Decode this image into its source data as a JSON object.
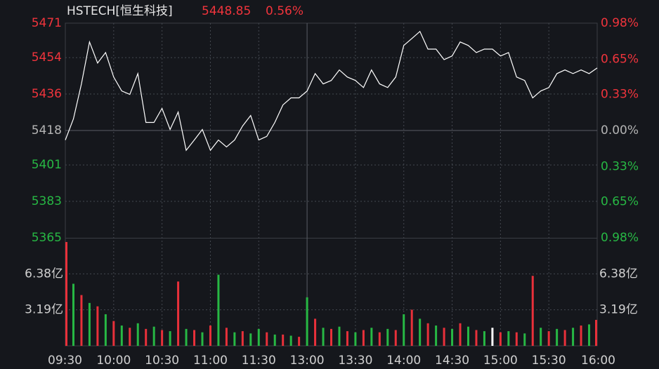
{
  "chart_data": [
    {
      "type": "line",
      "title": "HSTECH[恒生科技]",
      "subtitle": "5448.85",
      "change": "0.56%",
      "up_color": "#f0343c",
      "down_color": "#27b844",
      "flat_color": "#b4b4b4",
      "xlim": [
        0,
        330
      ],
      "xticks": [
        {
          "value": 0,
          "label": "09:30"
        },
        {
          "value": 30,
          "label": "10:00"
        },
        {
          "value": 60,
          "label": "10:30"
        },
        {
          "value": 90,
          "label": "11:00"
        },
        {
          "value": 120,
          "label": "11:30"
        },
        {
          "value": 150,
          "label": "13:00"
        },
        {
          "value": 180,
          "label": "13:30"
        },
        {
          "value": 210,
          "label": "14:00"
        },
        {
          "value": 240,
          "label": "14:30"
        },
        {
          "value": 270,
          "label": "15:00"
        },
        {
          "value": 300,
          "label": "15:30"
        },
        {
          "value": 330,
          "label": "16:00"
        }
      ],
      "ylim": [
        5365,
        5471
      ],
      "yticks": [
        5471,
        5454,
        5436,
        5418,
        5401,
        5383,
        5365
      ],
      "y2lim": [
        -0.98,
        0.98
      ],
      "y2ticks": [
        {
          "value": 0.98,
          "label": "0.98%"
        },
        {
          "value": 0.65,
          "label": "0.65%"
        },
        {
          "value": 0.33,
          "label": "0.33%"
        },
        {
          "value": 0,
          "label": "0.00%"
        },
        {
          "value": -0.33,
          "label": "0.33%"
        },
        {
          "value": -0.65,
          "label": "0.65%"
        },
        {
          "value": -0.98,
          "label": "0.98%"
        }
      ],
      "x": [
        0,
        5,
        10,
        15,
        20,
        25,
        30,
        35,
        40,
        45,
        50,
        55,
        60,
        65,
        70,
        75,
        80,
        85,
        90,
        95,
        100,
        105,
        110,
        115,
        120,
        125,
        130,
        135,
        140,
        145,
        150,
        155,
        160,
        165,
        170,
        175,
        180,
        185,
        190,
        195,
        200,
        205,
        210,
        215,
        220,
        225,
        230,
        235,
        240,
        245,
        250,
        255,
        260,
        265,
        270,
        275,
        280,
        285,
        290,
        295,
        300,
        305,
        310,
        315,
        320,
        325,
        330
      ],
      "series": [
        {
          "color": "#ffffff",
          "values": [
            5413.3,
            5423.7,
            5441,
            5461.7,
            5451.3,
            5456.5,
            5444.4,
            5437.5,
            5435.8,
            5446.1,
            5422,
            5422,
            5428.9,
            5418.5,
            5427.1,
            5408.2,
            5413.3,
            5418.5,
            5408.2,
            5413.3,
            5409.9,
            5413.3,
            5420.2,
            5425.4,
            5413.3,
            5415.1,
            5422,
            5430.6,
            5434.1,
            5434.1,
            5437.5,
            5446.1,
            5441,
            5442.7,
            5447.9,
            5444.4,
            5442.7,
            5439.2,
            5447.9,
            5441,
            5439.2,
            5444.4,
            5460,
            5463.4,
            5466.9,
            5458.2,
            5458.2,
            5453,
            5454.8,
            5461.7,
            5460,
            5456.5,
            5458.2,
            5458.2,
            5454.8,
            5456.5,
            5444.4,
            5442.7,
            5434.1,
            5437.5,
            5439.2,
            5446.1,
            5447.9,
            5446.1,
            5447.9,
            5446.1,
            5448.85
          ]
        }
      ]
    },
    {
      "type": "bar",
      "ylim": [
        0,
        9.57
      ],
      "yticks": [
        {
          "value": 6.38,
          "label": "6.38亿"
        },
        {
          "value": 3.19,
          "label": "3.19亿"
        }
      ],
      "x": [
        0,
        5,
        10,
        15,
        20,
        25,
        30,
        35,
        40,
        45,
        50,
        55,
        60,
        65,
        70,
        75,
        80,
        85,
        90,
        95,
        100,
        105,
        110,
        115,
        120,
        125,
        130,
        135,
        140,
        145,
        150,
        155,
        160,
        165,
        170,
        175,
        180,
        185,
        190,
        195,
        200,
        205,
        210,
        215,
        220,
        225,
        230,
        235,
        240,
        245,
        250,
        255,
        260,
        265,
        270,
        275,
        280,
        285,
        290,
        295,
        300,
        305,
        310,
        315,
        320,
        325,
        330
      ],
      "values": [
        9.2,
        5.5,
        4.5,
        3.8,
        3.5,
        2.8,
        2.2,
        1.8,
        1.6,
        2.0,
        1.5,
        1.7,
        1.4,
        1.3,
        5.7,
        1.5,
        1.4,
        1.2,
        1.8,
        6.3,
        1.6,
        1.2,
        1.3,
        1.1,
        1.5,
        1.2,
        1.0,
        1.0,
        0.9,
        0.8,
        4.3,
        2.4,
        1.6,
        1.5,
        1.7,
        1.3,
        1.2,
        1.4,
        1.6,
        1.2,
        1.5,
        1.4,
        2.8,
        3.2,
        2.4,
        2.0,
        1.8,
        1.6,
        1.5,
        2.0,
        1.7,
        1.4,
        1.3,
        1.6,
        1.2,
        1.3,
        1.2,
        1.1,
        6.2,
        1.6,
        1.3,
        1.5,
        1.4,
        1.6,
        1.8,
        1.9,
        2.3
      ],
      "colors": [
        "#e8303a",
        "#27b844",
        "#e8303a",
        "#27b844",
        "#e8303a",
        "#27b844",
        "#e8303a",
        "#27b844",
        "#e8303a",
        "#27b844",
        "#e8303a",
        "#27b844",
        "#e8303a",
        "#27b844",
        "#e8303a",
        "#27b844",
        "#e8303a",
        "#27b844",
        "#e8303a",
        "#27b844",
        "#e8303a",
        "#27b844",
        "#e8303a",
        "#27b844",
        "#27b844",
        "#e8303a",
        "#27b844",
        "#e8303a",
        "#27b844",
        "#e8303a",
        "#27b844",
        "#e8303a",
        "#27b844",
        "#e8303a",
        "#27b844",
        "#e8303a",
        "#27b844",
        "#e8303a",
        "#27b844",
        "#e8303a",
        "#27b844",
        "#e8303a",
        "#27b844",
        "#e8303a",
        "#27b844",
        "#e8303a",
        "#27b844",
        "#e8303a",
        "#27b844",
        "#e8303a",
        "#27b844",
        "#e8303a",
        "#27b844",
        "#ffffff",
        "#e8303a",
        "#27b844",
        "#e8303a",
        "#27b844",
        "#e8303a",
        "#27b844",
        "#e8303a",
        "#27b844",
        "#e8303a",
        "#27b844",
        "#e8303a",
        "#27b844",
        "#e8303a"
      ]
    }
  ]
}
